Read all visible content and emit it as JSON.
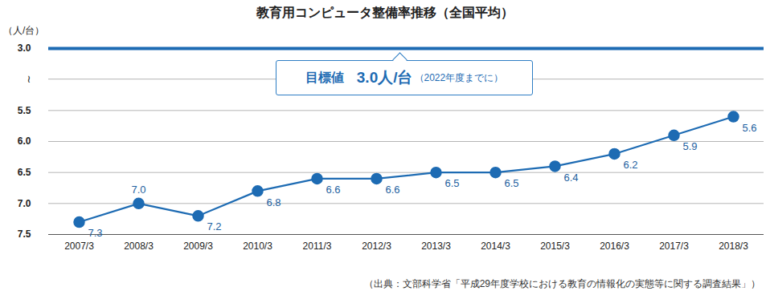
{
  "chart_data": {
    "type": "line",
    "title": "教育用コンピュータ整備率推移（全国平均）",
    "y_label": "（人/台）",
    "categories": [
      "2007/3",
      "2008/3",
      "2009/3",
      "2010/3",
      "2011/3",
      "2012/3",
      "2013/3",
      "2014/3",
      "2015/3",
      "2016/3",
      "2017/3",
      "2018/3"
    ],
    "values": [
      7.3,
      7.0,
      7.2,
      6.8,
      6.6,
      6.6,
      6.5,
      6.5,
      6.4,
      6.2,
      5.9,
      5.6
    ],
    "value_labels": [
      "7.3",
      "7.0",
      "7.2",
      "6.8",
      "6.6",
      "6.6",
      "6.5",
      "6.5",
      "6.4",
      "6.2",
      "5.9",
      "5.6"
    ],
    "color": "#1d6bb3",
    "marker": "circle",
    "data_labels": true,
    "ylim": [
      7.5,
      3.0
    ],
    "yticks": [
      {
        "value": 3.0,
        "label": "3.0"
      },
      5.5,
      {
        "value": 6.0,
        "label": "6.0"
      },
      6.5,
      {
        "value": 7.0,
        "label": "7.0"
      },
      7.5
    ],
    "axis_break": "≀",
    "grid": true,
    "annotations": [
      {
        "y": 3.0,
        "text": "目標値",
        "value_label": "3.0人/台",
        "note": "（2022年度までに）",
        "color": "#1d6bb3"
      }
    ],
    "caption": "（出典：文部科学省「平成29年度学校における教育の情報化の実態等に関する調査結果」）"
  }
}
